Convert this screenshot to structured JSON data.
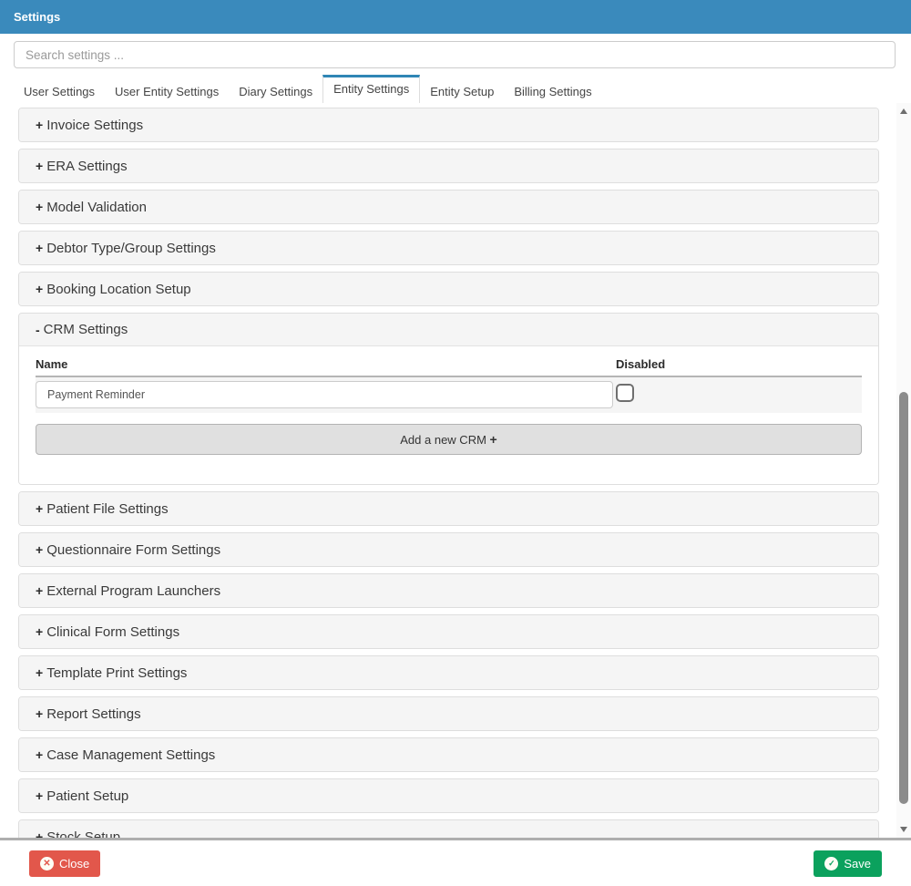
{
  "header": {
    "title": "Settings",
    "color": "#3a8abc"
  },
  "search": {
    "placeholder": "Search settings ...",
    "value": ""
  },
  "tabs": {
    "items": [
      {
        "label": "User Settings",
        "active": false
      },
      {
        "label": "User Entity Settings",
        "active": false
      },
      {
        "label": "Diary Settings",
        "active": false
      },
      {
        "label": "Entity Settings",
        "active": true
      },
      {
        "label": "Entity Setup",
        "active": false
      },
      {
        "label": "Billing Settings",
        "active": false
      }
    ]
  },
  "accordion": {
    "items": [
      {
        "glyph": "+",
        "title": "Invoice Settings",
        "expanded": false
      },
      {
        "glyph": "+",
        "title": "ERA Settings",
        "expanded": false
      },
      {
        "glyph": "+",
        "title": "Model Validation",
        "expanded": false
      },
      {
        "glyph": "+",
        "title": "Debtor Type/Group Settings",
        "expanded": false
      },
      {
        "glyph": "+",
        "title": "Booking Location Setup",
        "expanded": false
      },
      {
        "glyph": "-",
        "title": "CRM Settings",
        "expanded": true
      },
      {
        "glyph": "+",
        "title": "Patient File Settings",
        "expanded": false
      },
      {
        "glyph": "+",
        "title": "Questionnaire Form Settings",
        "expanded": false
      },
      {
        "glyph": "+",
        "title": "External Program Launchers",
        "expanded": false
      },
      {
        "glyph": "+",
        "title": "Clinical Form Settings",
        "expanded": false
      },
      {
        "glyph": "+",
        "title": "Template Print Settings",
        "expanded": false
      },
      {
        "glyph": "+",
        "title": "Report Settings",
        "expanded": false
      },
      {
        "glyph": "+",
        "title": "Case Management Settings",
        "expanded": false
      },
      {
        "glyph": "+",
        "title": "Patient Setup",
        "expanded": false
      },
      {
        "glyph": "+",
        "title": "Stock Setup",
        "expanded": false
      }
    ],
    "crm": {
      "columns": {
        "name": "Name",
        "disabled": "Disabled"
      },
      "rows": [
        {
          "name_value": "Payment Reminder",
          "disabled_checked": false
        }
      ],
      "add_button_label": "Add a new CRM ",
      "add_button_plus": "+"
    }
  },
  "footer": {
    "close_label": "Close",
    "save_label": "Save",
    "close_icon": "✕",
    "save_icon": "✓",
    "close_color": "#e2574b",
    "save_color": "#0ba15d"
  }
}
